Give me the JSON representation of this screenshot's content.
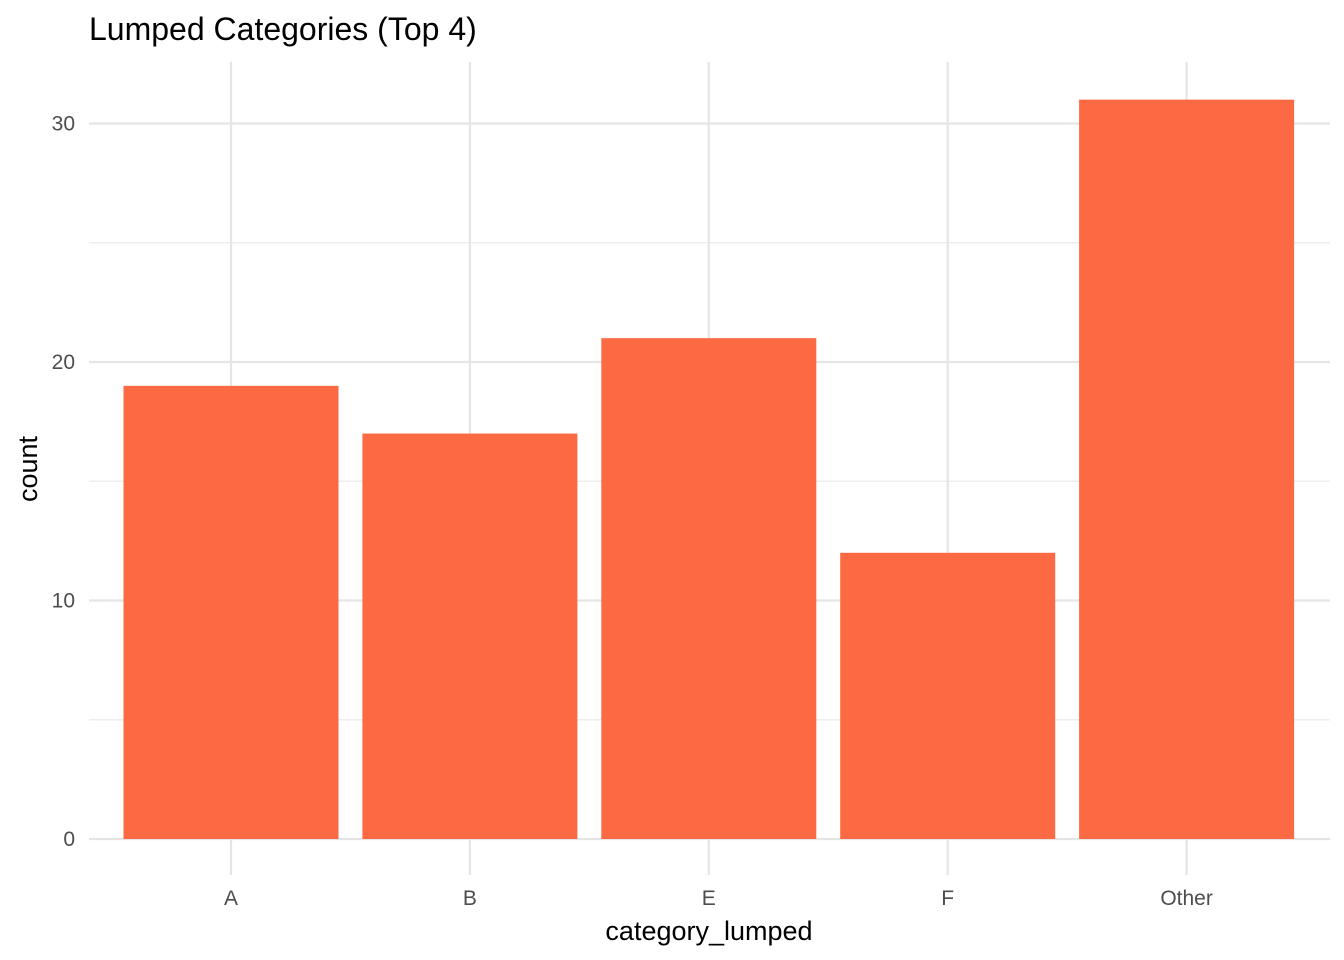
{
  "chart_data": {
    "type": "bar",
    "title": "Lumped Categories (Top 4)",
    "xlabel": "category_lumped",
    "ylabel": "count",
    "categories": [
      "A",
      "B",
      "E",
      "F",
      "Other"
    ],
    "values": [
      19,
      17,
      21,
      12,
      31
    ],
    "ylim": [
      0,
      32.6
    ],
    "yticks": [
      0,
      10,
      20,
      30
    ],
    "yminor": [
      5,
      15,
      25
    ],
    "grid": true,
    "legend": "none",
    "bar_color": "#FC6A43",
    "grid_color": "#E5E5E5"
  }
}
